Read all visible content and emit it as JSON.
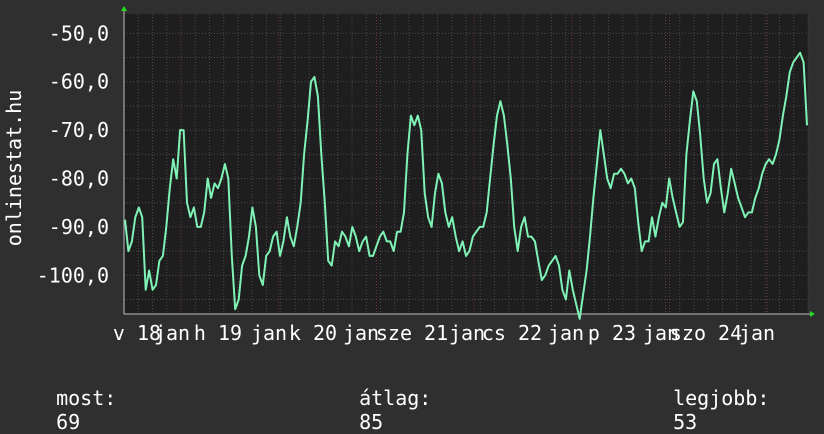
{
  "chart_data": {
    "type": "line",
    "ylabel": "onlinestat.hu",
    "ylim": [
      -108,
      -46
    ],
    "y_ticks": [
      "-50,0",
      "-60,0",
      "-70,0",
      "-80,0",
      "-90,0",
      "-100,0"
    ],
    "y_tick_values": [
      -50,
      -60,
      -70,
      -80,
      -90,
      -100
    ],
    "x_ticks": [
      "v 18",
      "jan",
      "h 19",
      "jan",
      "k 20",
      "jan",
      "sze 21",
      "jan",
      "cs 22",
      "jan",
      "p 23",
      "jan",
      "szo 24",
      "jan"
    ],
    "grid": true,
    "colors": {
      "background": "#2f2f2f",
      "plot": "#1e1e1e",
      "grid": "#4a4a4a",
      "line": "#7ff2b6",
      "axis_arrow": "#22dd22",
      "text": "#ffffff"
    },
    "series": [
      {
        "values": [
          -88.5,
          -95,
          -93,
          -88,
          -86,
          -88,
          -103,
          -99,
          -103,
          -102,
          -97,
          -96,
          -90,
          -82,
          -76,
          -80,
          -70,
          -70,
          -85,
          -88,
          -86,
          -90,
          -90,
          -87,
          -80,
          -84,
          -81,
          -82,
          -80,
          -77,
          -80,
          -96,
          -107,
          -105,
          -98,
          -96,
          -92,
          -86,
          -90,
          -100,
          -102,
          -96,
          -95,
          -92,
          -91,
          -96,
          -93,
          -88,
          -92,
          -94,
          -90,
          -85,
          -75,
          -68,
          -60,
          -59,
          -63,
          -75,
          -85,
          -97,
          -98,
          -93,
          -94,
          -91,
          -92,
          -94,
          -90,
          -92,
          -95,
          -93,
          -92,
          -96,
          -96,
          -94,
          -92,
          -91,
          -93,
          -93,
          -95,
          -91,
          -91,
          -87,
          -75,
          -67,
          -69,
          -67,
          -70,
          -83,
          -88,
          -90,
          -83,
          -79,
          -81,
          -87,
          -90,
          -88,
          -92,
          -95,
          -93,
          -96,
          -95,
          -92,
          -91,
          -90,
          -90,
          -87,
          -80,
          -73,
          -67,
          -64,
          -67,
          -73,
          -80,
          -90,
          -95,
          -90,
          -88,
          -92,
          -92,
          -93,
          -97,
          -101,
          -100,
          -98,
          -97,
          -96,
          -98,
          -103,
          -105,
          -99,
          -103,
          -106,
          -109,
          -104,
          -99,
          -92,
          -84,
          -77,
          -70,
          -75,
          -80,
          -82,
          -79,
          -79,
          -78,
          -79,
          -81,
          -80,
          -82,
          -89,
          -95,
          -93,
          -93,
          -88,
          -92,
          -88,
          -85,
          -86,
          -80,
          -84,
          -87,
          -90,
          -89,
          -75,
          -68,
          -62,
          -64,
          -71,
          -80,
          -85,
          -83,
          -77,
          -76,
          -82,
          -87,
          -83,
          -78,
          -81,
          -84,
          -86,
          -88,
          -87,
          -87,
          -84,
          -82,
          -79,
          -77,
          -76,
          -77,
          -75,
          -72,
          -67,
          -63,
          -58,
          -56,
          -55,
          -54,
          -56,
          -69
        ],
        "end_value": -69
      }
    ],
    "stats": [
      {
        "label": "most:",
        "value": "69"
      },
      {
        "label": "átlag:",
        "value": "85"
      },
      {
        "label": "legjobb:",
        "value": "53"
      }
    ]
  }
}
